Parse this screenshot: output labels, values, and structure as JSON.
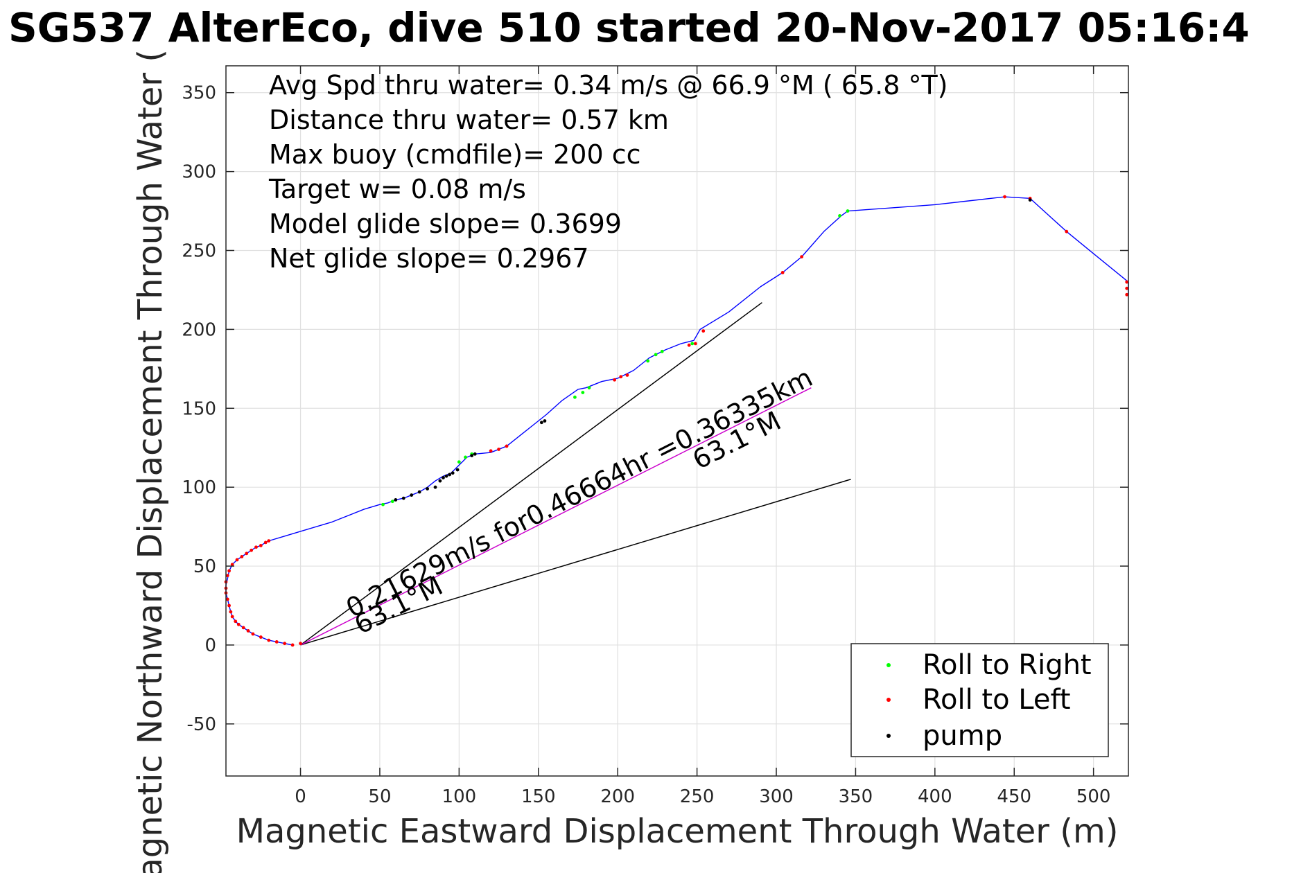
{
  "chart_data": {
    "type": "line",
    "title": "SG537 AlterEco, dive 510 started 20-Nov-2017 05:16:4",
    "xlabel": "Magnetic Eastward Displacement Through Water (m)",
    "ylabel": "Magnetic Northward Displacement Through Water (",
    "xlim": [
      -47,
      522
    ],
    "ylim": [
      -83,
      367
    ],
    "xticks": [
      0,
      50,
      100,
      150,
      200,
      250,
      300,
      350,
      400,
      450,
      500
    ],
    "yticks": [
      -50,
      0,
      50,
      100,
      150,
      200,
      250,
      300,
      350
    ],
    "grid": true,
    "annotations": [
      "Avg Spd thru water=  0.34 m/s @  66.9 °M ( 65.8 °T)",
      "Distance thru water=  0.57 km",
      "Max buoy (cmdfile)= 200 cc",
      "Target w= 0.08 m/s",
      "Model glide slope= 0.3699",
      "Net glide slope= 0.2967"
    ],
    "current_label": "0.21629m/s for0.46664hr =0.36335km",
    "current_heading_label": "63.1°M",
    "legend_position": "bottom-right",
    "legend": [
      {
        "label": "Roll to Right",
        "color": "#00ff00"
      },
      {
        "label": "Roll to Left",
        "color": "#ff0000"
      },
      {
        "label": "pump",
        "color": "#000000"
      }
    ],
    "track": {
      "name": "glider track",
      "color": "#0000ff",
      "x": [
        -5,
        -10,
        -20,
        -25,
        -30,
        -33,
        -36,
        -39,
        -41,
        -43,
        -44,
        -45,
        -46,
        -47,
        -47,
        -46,
        -45,
        -43,
        -40,
        -37,
        -34,
        -31,
        -28,
        -25,
        -22,
        -20,
        -10,
        0,
        20,
        40,
        50,
        55,
        60,
        65,
        70,
        75,
        80,
        85,
        90,
        95,
        100,
        105,
        110,
        120,
        130,
        140,
        150,
        155,
        165,
        175,
        180,
        190,
        200,
        210,
        220,
        230,
        240,
        248,
        252,
        270,
        290,
        304,
        316,
        330,
        341,
        345,
        400,
        444,
        460,
        483,
        500,
        522,
        522,
        522
      ],
      "y": [
        0,
        1,
        3,
        5,
        7,
        9,
        11,
        13,
        15,
        18,
        21,
        25,
        29,
        33,
        38,
        42,
        47,
        51,
        54,
        56,
        58,
        60,
        62,
        63,
        65,
        66,
        69,
        72,
        78,
        86,
        89,
        90,
        92,
        93,
        95,
        97,
        100,
        104,
        107,
        109,
        114,
        119,
        121,
        122,
        126,
        134,
        142,
        146,
        155,
        162,
        163,
        167,
        169,
        174,
        182,
        187,
        191,
        193,
        200,
        211,
        227,
        236,
        246,
        262,
        272,
        275,
        279,
        284,
        283,
        262,
        248,
        230,
        225,
        222
      ]
    },
    "roll_right_points": {
      "x": [
        52,
        58,
        100,
        104,
        108,
        173,
        178,
        182,
        219,
        224,
        228,
        247,
        340,
        345
      ],
      "y": [
        89,
        91,
        116,
        119,
        121,
        157,
        160,
        163,
        180,
        184,
        186,
        191,
        272,
        275
      ]
    },
    "roll_left_points": {
      "x": [
        -5,
        0,
        -10,
        -15,
        -20,
        -25,
        -30,
        -33,
        -36,
        -39,
        -41,
        -43,
        -44,
        -45,
        -46,
        -47,
        -47,
        -47,
        -46,
        -45,
        -43,
        -40,
        -37,
        -34,
        -31,
        -28,
        -25,
        -22,
        -20,
        120,
        125,
        130,
        198,
        202,
        206,
        245,
        249,
        254,
        304,
        316,
        444,
        460,
        483,
        521,
        521,
        521
      ],
      "y": [
        0,
        1,
        1,
        2,
        3,
        5,
        7,
        9,
        11,
        13,
        15,
        18,
        21,
        25,
        29,
        33,
        36,
        40,
        44,
        47,
        51,
        54,
        56,
        58,
        60,
        62,
        63,
        65,
        66,
        123,
        124,
        126,
        168,
        170,
        171,
        190,
        191,
        199,
        236,
        246,
        284,
        283,
        262,
        230,
        226,
        222
      ]
    },
    "pump_points": {
      "x": [
        60,
        65,
        70,
        75,
        80,
        85,
        88,
        90,
        92,
        94,
        96,
        99,
        108,
        110,
        152,
        154,
        460
      ],
      "y": [
        92,
        93,
        95,
        97,
        99,
        100,
        104,
        106,
        107,
        108,
        109,
        111,
        120,
        121,
        141,
        142,
        282
      ]
    },
    "current_line": {
      "name": "depth-averaged current",
      "color": "#cc00cc",
      "x": [
        0,
        322
      ],
      "y": [
        0,
        163
      ]
    },
    "reference_lines": [
      {
        "name": "model glide bound",
        "color": "#000000",
        "x": [
          0,
          291
        ],
        "y": [
          0,
          217
        ]
      },
      {
        "name": "net glide bound",
        "color": "#000000",
        "x": [
          0,
          347
        ],
        "y": [
          0,
          105
        ]
      }
    ]
  }
}
